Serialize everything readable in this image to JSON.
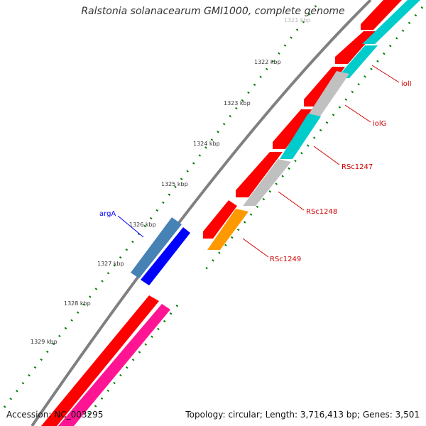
{
  "title": "Ralstonia solanacearum GMI1000, complete genome",
  "footer": {
    "accession": "Accession: NC_003295",
    "summary": "Topology: circular; Length: 3,716,413 bp; Genes: 3,501"
  },
  "ticks": [
    "1321 kbp",
    "1322 kbp",
    "1323 kbp",
    "1324 kbp",
    "1325 kbp",
    "1326 kbp",
    "1327 kbp",
    "1328 kbp",
    "1329 kbp"
  ],
  "gene_labels": {
    "argA": "argA",
    "iolI": "iolI",
    "iolG": "iolG",
    "RSc1247": "RSc1247",
    "RSc1248": "RSc1248",
    "RSc1249": "RSc1249"
  },
  "colors": {
    "backbone": "#808080",
    "cds_red": "#ff0000",
    "cds_cyan": "#00cccc",
    "cds_grey": "#c0c0c0",
    "cds_orange": "#ff9900",
    "cds_magenta": "#ff1493",
    "cds_steelblue": "#4682b4",
    "cds_blue": "#0000ff",
    "tick_green": "#008000",
    "label_red": "#cc0000",
    "label_blue": "#0000ff"
  }
}
